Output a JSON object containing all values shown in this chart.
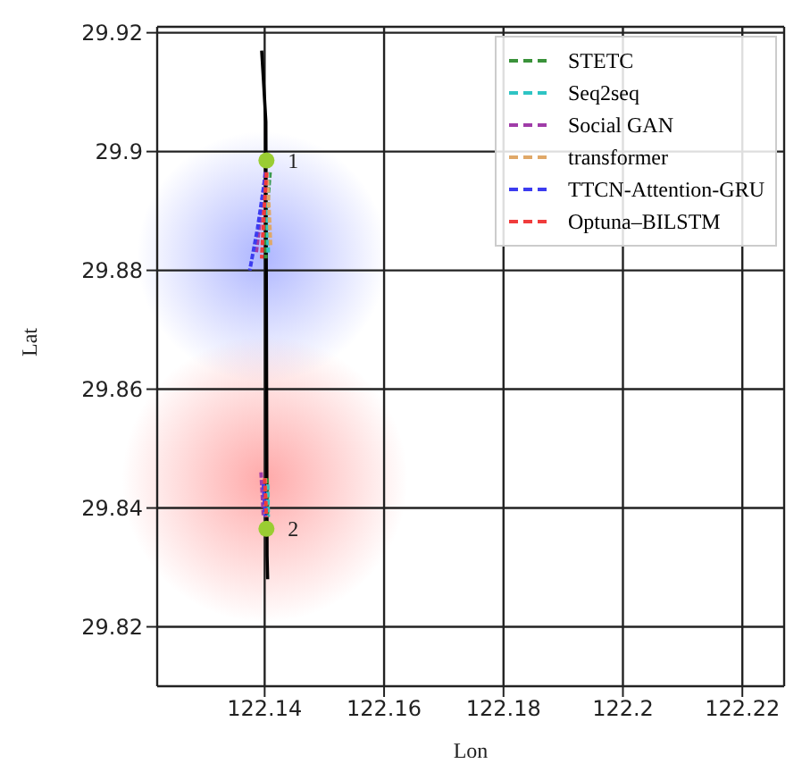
{
  "chart_data": {
    "type": "line",
    "xlabel": "Lon",
    "ylabel": "Lat",
    "xlim": [
      122.122,
      122.227
    ],
    "ylim": [
      29.81,
      29.921
    ],
    "xticks": [
      122.14,
      122.16,
      122.18,
      122.2,
      122.22
    ],
    "yticks": [
      29.82,
      29.84,
      29.86,
      29.88,
      29.9,
      29.92
    ],
    "grid": true,
    "legend": "top right",
    "line_style": "dashed",
    "marker": "none",
    "annotations": [
      {
        "text": "1",
        "x": 122.1403,
        "y": 29.8985
      },
      {
        "text": "2",
        "x": 122.1403,
        "y": 29.8365
      }
    ],
    "series": [
      {
        "type": "line",
        "line_style": "solid",
        "color": "#000000",
        "x": [
          122.1395,
          122.1398,
          122.1402,
          122.1403,
          122.1404,
          122.1405
        ],
        "values": [
          29.917,
          29.912,
          29.905,
          29.87,
          29.832,
          29.828
        ]
      },
      {
        "name": "STETC",
        "color": "#3a923a",
        "x": [
          122.1409,
          122.1403,
          122.1402,
          null,
          122.1404,
          122.1405
        ],
        "values": [
          29.8965,
          29.889,
          29.882,
          null,
          29.845,
          29.8385
        ]
      },
      {
        "name": "Seq2seq",
        "color": "#2ec4c4",
        "x": [
          122.1406,
          122.1405,
          122.1406,
          null,
          122.1405,
          122.1406
        ],
        "values": [
          29.8965,
          29.888,
          29.883,
          null,
          29.844,
          29.8385
        ]
      },
      {
        "name": "Social GAN",
        "color": "#a03ca8",
        "x": [
          122.1401,
          122.1393,
          122.1386,
          null,
          122.1394,
          122.1398
        ],
        "values": [
          29.8965,
          29.889,
          29.883,
          null,
          29.846,
          29.8385
        ]
      },
      {
        "name": "transformer",
        "color": "#e0a868",
        "x": [
          122.1404,
          122.1408,
          122.141,
          null,
          122.1401,
          122.1402
        ],
        "values": [
          29.8965,
          29.889,
          29.884,
          null,
          29.845,
          29.8385
        ]
      },
      {
        "name": "TTCN-Attention-GRU",
        "color": "#3c3cf0",
        "x": [
          122.1402,
          122.1388,
          122.1375,
          null,
          122.1398,
          122.1401
        ],
        "values": [
          29.8965,
          29.887,
          29.88,
          null,
          29.844,
          29.8385
        ]
      },
      {
        "name": "Optuna–BILSTM",
        "color": "#f03c3c",
        "x": [
          122.1403,
          122.1398,
          122.1395,
          null,
          122.14,
          122.1403
        ],
        "values": [
          29.8965,
          29.888,
          29.882,
          null,
          29.845,
          29.8385
        ]
      },
      {
        "type": "scatter",
        "marker": "circle",
        "color": "#9acd32",
        "x": [
          122.1403,
          122.1403
        ],
        "values": [
          29.8985,
          29.8365
        ]
      }
    ]
  }
}
